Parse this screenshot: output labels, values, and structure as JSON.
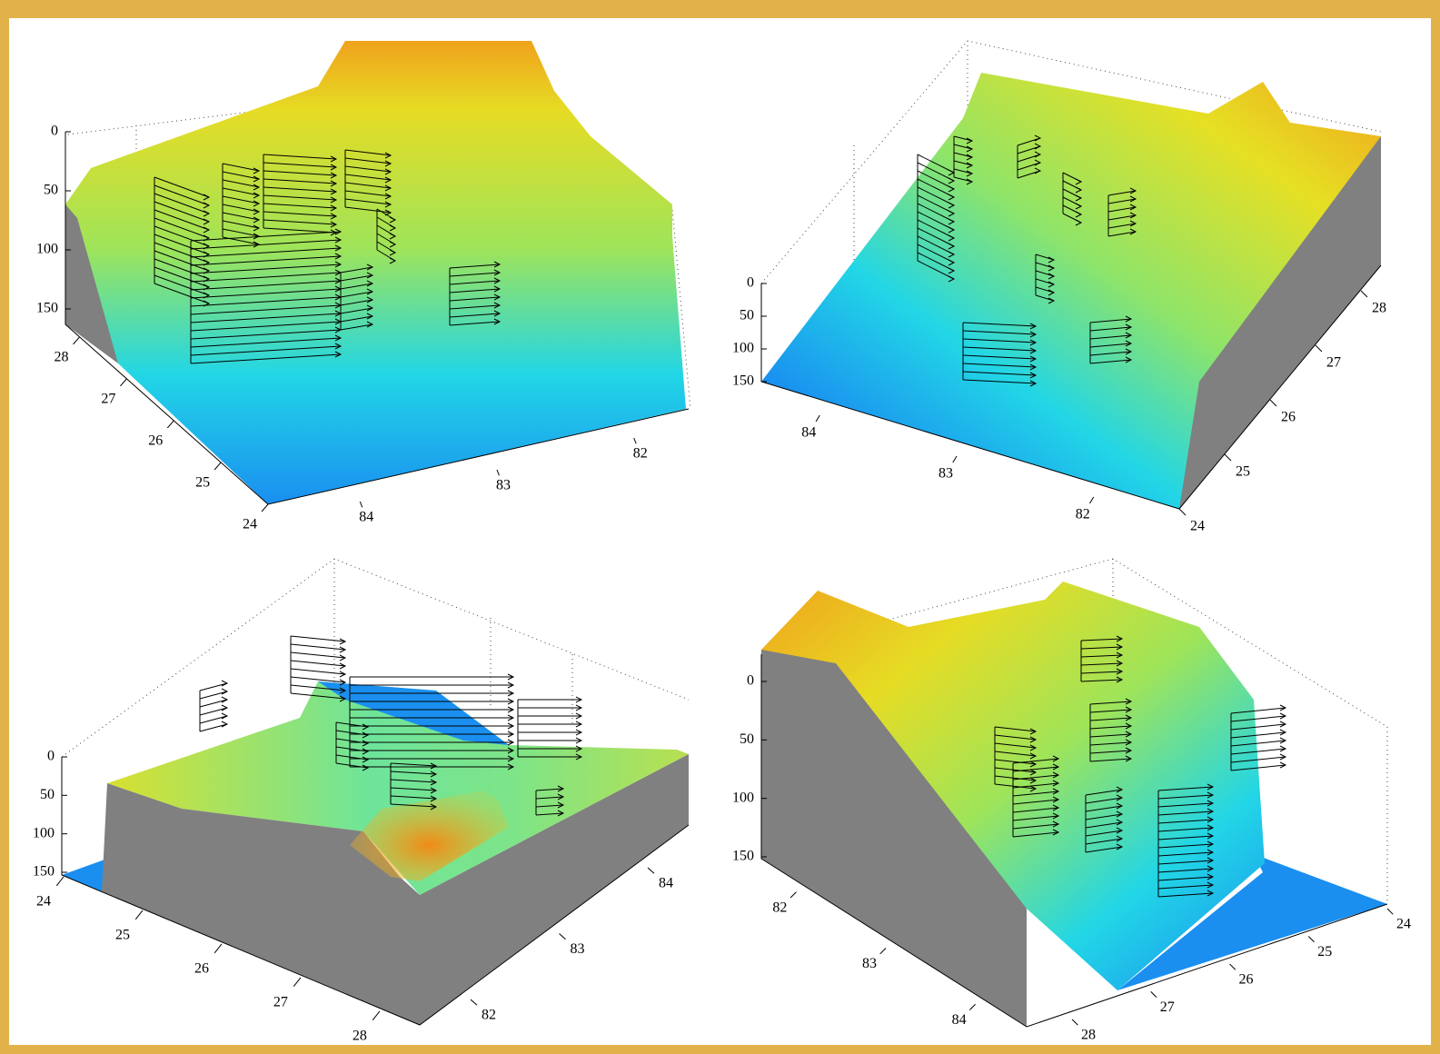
{
  "chart_data": [
    {
      "type": "surface3d",
      "xlim": [
        81.6,
        84.4
      ],
      "xticks": [
        82,
        83,
        84
      ],
      "ylim": [
        24,
        28.3
      ],
      "yticks": [
        24,
        25,
        26,
        27,
        28
      ],
      "zlim": [
        0,
        150
      ],
      "zticks": [
        0,
        50,
        100,
        150
      ]
    },
    {
      "type": "surface3d",
      "xlim": [
        81.6,
        84.4
      ],
      "xticks": [
        82,
        83,
        84
      ],
      "ylim": [
        24,
        28.3
      ],
      "yticks": [
        24,
        25,
        26,
        27,
        28
      ],
      "zlim": [
        0,
        150
      ],
      "zticks": [
        0,
        50,
        100,
        150
      ]
    },
    {
      "type": "surface3d",
      "xlim": [
        81.6,
        84.4
      ],
      "xticks": [
        82,
        83,
        84
      ],
      "ylim": [
        24,
        28.3
      ],
      "yticks": [
        24,
        25,
        26,
        27,
        28
      ],
      "zlim": [
        0,
        150
      ],
      "zticks": [
        0,
        50,
        100,
        150
      ]
    },
    {
      "type": "surface3d",
      "xlim": [
        81.6,
        84.4
      ],
      "xticks": [
        82,
        83,
        84
      ],
      "ylim": [
        24,
        28.3
      ],
      "yticks": [
        24,
        25,
        26,
        27,
        28
      ],
      "zlim": [
        0,
        150
      ],
      "zticks": [
        0,
        50,
        100,
        150
      ]
    }
  ]
}
